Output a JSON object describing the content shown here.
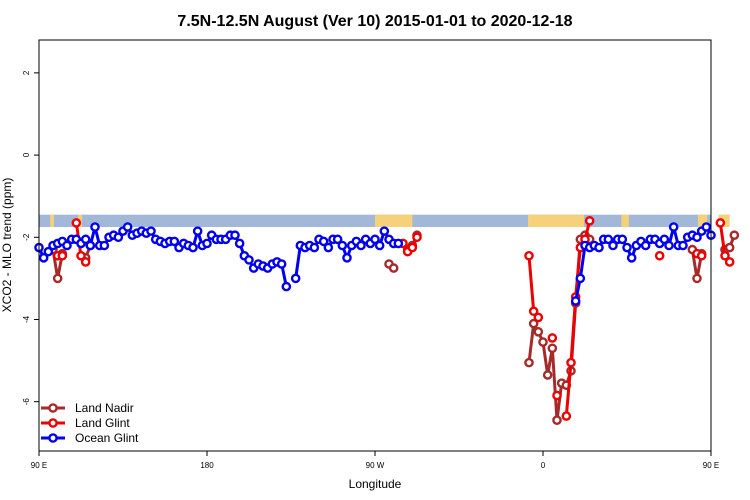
{
  "chart_data": {
    "type": "line",
    "title": "7.5N-12.5N August (Ver 10)   2015-01-01 to 2020-12-18",
    "xlabel": "Longitude",
    "ylabel": "XCO2 - MLO trend (ppm)",
    "xlim": [
      -90,
      270
    ],
    "ylim": [
      -7.2,
      2.8
    ],
    "x_ticks": [
      {
        "value": -90,
        "label": "90 E"
      },
      {
        "value": 0,
        "label": "180"
      },
      {
        "value": 90,
        "label": "90 W"
      },
      {
        "value": 180,
        "label": "0"
      },
      {
        "value": 270,
        "label": "90 E"
      },
      {
        "value": 360,
        "label": "180"
      }
    ],
    "y_ticks": [
      {
        "value": 2,
        "label": "2"
      },
      {
        "value": 0,
        "label": "0"
      },
      {
        "value": -2,
        "label": "-2"
      },
      {
        "value": -4,
        "label": "-4"
      },
      {
        "value": -6,
        "label": "-6"
      }
    ],
    "grid": false,
    "legend_position": "bottom-left",
    "background_band": {
      "y_range": [
        -1.75,
        -1.45
      ],
      "ocean_color": "#a3b8d8",
      "land_color": "#f5d27a"
    },
    "series": [
      {
        "name": "Land Nadir",
        "color": "#a52a2a",
        "segments": [
          [
            [
              -82.5,
              -2.3
            ],
            [
              -80,
              -3.0
            ],
            [
              -77.5,
              -2.4
            ]
          ],
          [
            [
              -65,
              -2.5
            ],
            [
              -62.5,
              -2.2
            ]
          ],
          [
            [
              97.5,
              -2.65
            ],
            [
              100,
              -2.75
            ]
          ],
          [
            [
              107.5,
              -2.3
            ],
            [
              110,
              -2.2
            ],
            [
              112.5,
              -1.95
            ]
          ],
          [
            [
              172.5,
              -5.05
            ],
            [
              175,
              -4.1
            ],
            [
              177.5,
              -4.3
            ],
            [
              180,
              -4.55
            ],
            [
              182.5,
              -5.35
            ],
            [
              185,
              -4.7
            ],
            [
              187.5,
              -6.45
            ],
            [
              190,
              -5.55
            ],
            [
              192.5,
              -5.6
            ],
            [
              195,
              -5.25
            ],
            [
              197.5,
              -3.6
            ],
            [
              200,
              -2.05
            ],
            [
              202.5,
              -1.95
            ],
            [
              205,
              -2.05
            ]
          ],
          [
            [
              260,
              -2.3
            ],
            [
              262.5,
              -3.0
            ],
            [
              265,
              -2.4
            ]
          ],
          [
            [
              277.5,
              -2.3
            ],
            [
              280,
              -2.25
            ],
            [
              282.5,
              -1.95
            ]
          ]
        ]
      },
      {
        "name": "Land Glint",
        "color": "#ee0000",
        "segments": [
          [
            [
              -80,
              -2.45
            ],
            [
              -77.5,
              -2.45
            ]
          ],
          [
            [
              -70,
              -1.65
            ],
            [
              -67.5,
              -2.45
            ],
            [
              -65,
              -2.6
            ]
          ],
          [
            [
              105,
              -2.15
            ],
            [
              107.5,
              -2.35
            ],
            [
              110,
              -2.25
            ],
            [
              112.5,
              -2.0
            ]
          ],
          [
            [
              172.5,
              -2.45
            ],
            [
              175,
              -3.8
            ],
            [
              177.5,
              -3.95
            ]
          ],
          [
            [
              185,
              -4.45
            ]
          ],
          [
            [
              187.5,
              -5.85
            ]
          ],
          [
            [
              192.5,
              -6.35
            ],
            [
              195,
              -5.05
            ],
            [
              197.5,
              -3.45
            ],
            [
              200,
              -2.25
            ],
            [
              202.5,
              -2.05
            ],
            [
              205,
              -1.6
            ]
          ],
          [
            [
              242.5,
              -2.45
            ]
          ],
          [
            [
              262.5,
              -2.4
            ],
            [
              265,
              -2.45
            ]
          ],
          [
            [
              275,
              -1.65
            ],
            [
              277.5,
              -2.45
            ],
            [
              280,
              -2.6
            ]
          ]
        ]
      },
      {
        "name": "Ocean Glint",
        "color": "#0000ee",
        "segments": [
          [
            [
              -90,
              -2.25
            ],
            [
              -87.5,
              -2.5
            ],
            [
              -85,
              -2.35
            ],
            [
              -82.5,
              -2.2
            ],
            [
              -80,
              -2.15
            ],
            [
              -77.5,
              -2.1
            ],
            [
              -75,
              -2.2
            ],
            [
              -72.5,
              -2.05
            ],
            [
              -70,
              -2.05
            ],
            [
              -67.5,
              -2.15
            ],
            [
              -65,
              -2.05
            ],
            [
              -62.5,
              -2.2
            ],
            [
              -60,
              -1.75
            ],
            [
              -57.5,
              -2.2
            ],
            [
              -55,
              -2.2
            ],
            [
              -52.5,
              -2.0
            ],
            [
              -50,
              -1.95
            ],
            [
              -47.5,
              -2.0
            ],
            [
              -45,
              -1.85
            ],
            [
              -42.5,
              -1.75
            ],
            [
              -40,
              -1.95
            ],
            [
              -37.5,
              -1.9
            ],
            [
              -35,
              -1.85
            ],
            [
              -32.5,
              -1.9
            ],
            [
              -30,
              -1.85
            ],
            [
              -27.5,
              -2.05
            ],
            [
              -25,
              -2.1
            ],
            [
              -22.5,
              -2.15
            ],
            [
              -20,
              -2.1
            ],
            [
              -17.5,
              -2.1
            ],
            [
              -15,
              -2.25
            ],
            [
              -12.5,
              -2.15
            ],
            [
              -10,
              -2.2
            ],
            [
              -7.5,
              -2.25
            ],
            [
              -5,
              -1.85
            ],
            [
              -2.5,
              -2.2
            ],
            [
              0,
              -2.15
            ],
            [
              2.5,
              -1.95
            ],
            [
              5,
              -2.05
            ],
            [
              7.5,
              -2.05
            ],
            [
              10,
              -2.05
            ],
            [
              12.5,
              -1.95
            ],
            [
              15,
              -1.95
            ],
            [
              17.5,
              -2.15
            ],
            [
              20,
              -2.45
            ],
            [
              22.5,
              -2.55
            ],
            [
              25,
              -2.75
            ],
            [
              27.5,
              -2.65
            ],
            [
              30,
              -2.7
            ],
            [
              32.5,
              -2.75
            ],
            [
              35,
              -2.65
            ],
            [
              37.5,
              -2.6
            ],
            [
              40,
              -2.65
            ],
            [
              42.5,
              -3.2
            ]
          ],
          [
            [
              47.5,
              -3.0
            ],
            [
              50,
              -2.2
            ],
            [
              52.5,
              -2.25
            ],
            [
              55,
              -2.2
            ],
            [
              57.5,
              -2.25
            ],
            [
              60,
              -2.05
            ],
            [
              62.5,
              -2.1
            ],
            [
              65,
              -2.25
            ],
            [
              67.5,
              -2.05
            ],
            [
              70,
              -2.05
            ],
            [
              72.5,
              -2.2
            ],
            [
              75,
              -2.5
            ],
            [
              77.5,
              -2.2
            ],
            [
              80,
              -2.1
            ],
            [
              82.5,
              -2.2
            ],
            [
              85,
              -2.05
            ],
            [
              87.5,
              -2.15
            ],
            [
              90,
              -2.05
            ],
            [
              92.5,
              -2.2
            ],
            [
              95,
              -1.85
            ],
            [
              97.5,
              -2.05
            ],
            [
              100,
              -2.15
            ],
            [
              102.5,
              -2.15
            ]
          ],
          [
            [
              197.5,
              -3.55
            ],
            [
              200,
              -3.0
            ],
            [
              202.5,
              -2.2
            ],
            [
              205,
              -2.25
            ],
            [
              207.5,
              -2.2
            ],
            [
              210,
              -2.25
            ],
            [
              212.5,
              -2.05
            ],
            [
              215,
              -2.05
            ],
            [
              217.5,
              -2.2
            ],
            [
              220,
              -2.05
            ],
            [
              222.5,
              -2.05
            ],
            [
              225,
              -2.25
            ],
            [
              227.5,
              -2.5
            ],
            [
              230,
              -2.2
            ],
            [
              232.5,
              -2.1
            ],
            [
              235,
              -2.2
            ],
            [
              237.5,
              -2.05
            ],
            [
              240,
              -2.05
            ],
            [
              242.5,
              -2.15
            ],
            [
              245,
              -2.05
            ],
            [
              247.5,
              -2.2
            ],
            [
              250,
              -1.75
            ],
            [
              252.5,
              -2.2
            ],
            [
              255,
              -2.2
            ],
            [
              257.5,
              -2.0
            ],
            [
              260,
              -1.95
            ],
            [
              262.5,
              -2.0
            ],
            [
              265,
              -1.85
            ],
            [
              267.5,
              -1.75
            ],
            [
              270,
              -1.95
            ]
          ]
        ]
      }
    ]
  }
}
